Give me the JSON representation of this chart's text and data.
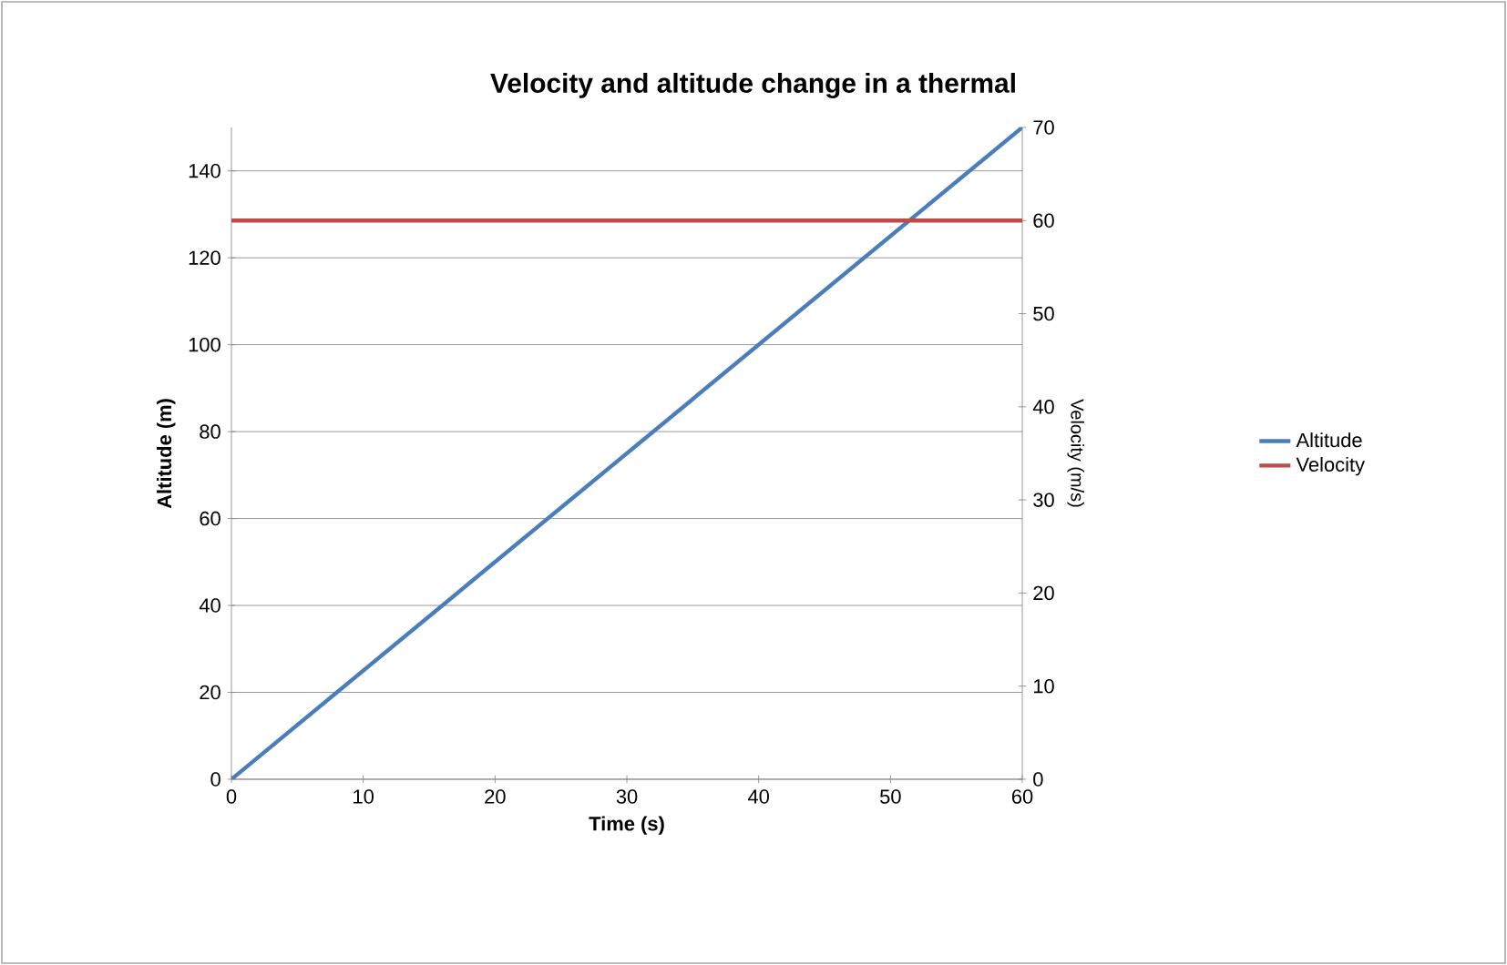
{
  "chart_data": {
    "type": "line",
    "title": "Velocity and altitude change in a thermal",
    "xlabel": "Time (s)",
    "ylabel": "Altitude (m)",
    "y2label": "Velocity (m/s)",
    "x": [
      0,
      60
    ],
    "series": [
      {
        "name": "Altitude",
        "color": "#4a7ebb",
        "values": [
          0,
          150
        ]
      },
      {
        "name": "Velocity",
        "color": "#be4b48",
        "values": [
          60,
          60
        ],
        "axis": "y2"
      }
    ],
    "xlim": [
      0,
      60
    ],
    "xticks": [
      0,
      10,
      20,
      30,
      40,
      50,
      60
    ],
    "ylim": [
      0,
      150
    ],
    "yticks": [
      0,
      20,
      40,
      60,
      80,
      100,
      120,
      140
    ],
    "y2lim": [
      0,
      70
    ],
    "y2ticks": [
      0,
      10,
      20,
      30,
      40,
      50,
      60,
      70
    ],
    "grid": "y",
    "legend": "right"
  }
}
